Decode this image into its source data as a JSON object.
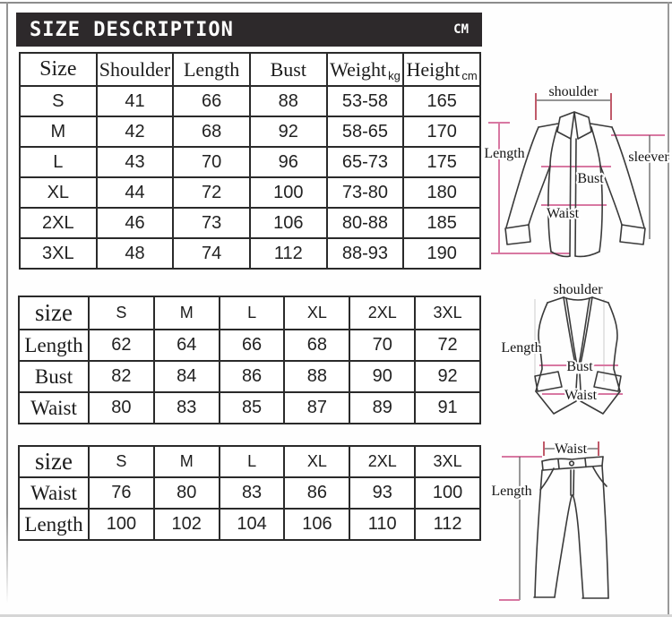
{
  "header": {
    "title": "SIZE DESCRIPTION",
    "unit": "CM"
  },
  "colors": {
    "accent_pink": "#d878a2",
    "tick_red": "#c05a6a",
    "header_bg": "#2d292b",
    "table_border": "#2a2a2a",
    "garment_outline": "#3a3a3a"
  },
  "shirt_table": {
    "columns": [
      {
        "label": "Size",
        "unit": ""
      },
      {
        "label": "Shoulder",
        "unit": ""
      },
      {
        "label": "Length",
        "unit": ""
      },
      {
        "label": "Bust",
        "unit": ""
      },
      {
        "label": "Weight",
        "unit": "kg"
      },
      {
        "label": "Height",
        "unit": "cm"
      }
    ],
    "rows": [
      [
        "S",
        "41",
        "66",
        "88",
        "53-58",
        "165"
      ],
      [
        "M",
        "42",
        "68",
        "92",
        "58-65",
        "170"
      ],
      [
        "L",
        "43",
        "70",
        "96",
        "65-73",
        "175"
      ],
      [
        "XL",
        "44",
        "72",
        "100",
        "73-80",
        "180"
      ],
      [
        "2XL",
        "46",
        "73",
        "106",
        "80-88",
        "185"
      ],
      [
        "3XL",
        "48",
        "74",
        "112",
        "88-93",
        "190"
      ]
    ]
  },
  "vest_table": {
    "corner": "size",
    "columns": [
      "S",
      "M",
      "L",
      "XL",
      "2XL",
      "3XL"
    ],
    "rows": [
      {
        "label": "Length",
        "values": [
          "62",
          "64",
          "66",
          "68",
          "70",
          "72"
        ]
      },
      {
        "label": "Bust",
        "values": [
          "82",
          "84",
          "86",
          "88",
          "90",
          "92"
        ]
      },
      {
        "label": "Waist",
        "values": [
          "80",
          "83",
          "85",
          "87",
          "89",
          "91"
        ]
      }
    ]
  },
  "pants_table": {
    "corner": "size",
    "columns": [
      "S",
      "M",
      "L",
      "XL",
      "2XL",
      "3XL"
    ],
    "rows": [
      {
        "label": "Waist",
        "values": [
          "76",
          "80",
          "83",
          "86",
          "93",
          "100"
        ]
      },
      {
        "label": "Length",
        "values": [
          "100",
          "102",
          "104",
          "106",
          "110",
          "112"
        ]
      }
    ]
  },
  "shirt_diagram": {
    "labels": {
      "shoulder": "shoulder",
      "length": "Length",
      "sleeve": "sleever",
      "bust": "Bust",
      "waist": "Waist"
    }
  },
  "vest_diagram": {
    "labels": {
      "shoulder": "shoulder",
      "length": "Length",
      "bust": "Bust",
      "waist": "Waist"
    }
  },
  "pants_diagram": {
    "labels": {
      "waist": "Waist",
      "length": "Length"
    }
  }
}
